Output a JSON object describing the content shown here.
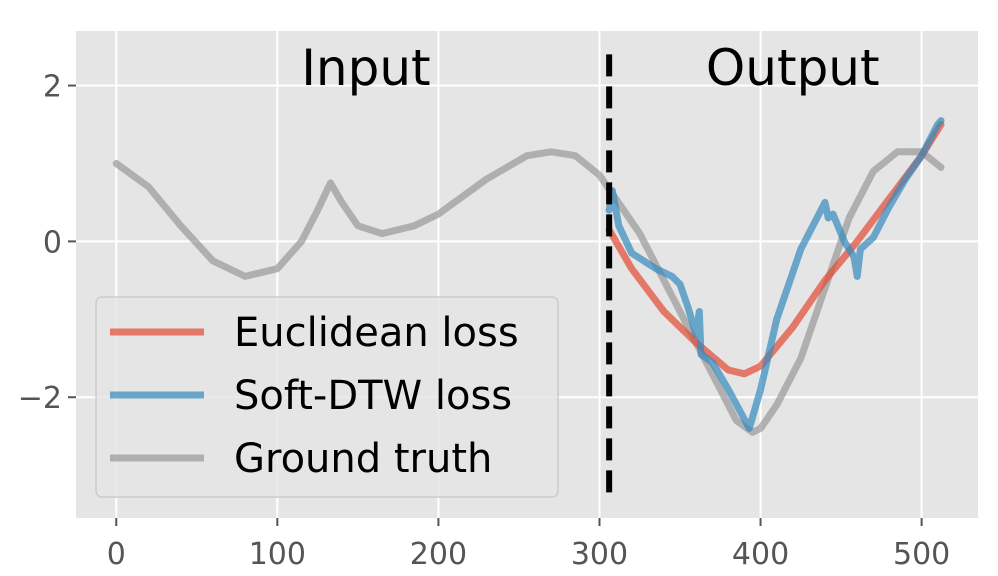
{
  "chart_data": {
    "type": "line",
    "title": "",
    "xlabel": "",
    "ylabel": "",
    "xlim": [
      -25,
      535
    ],
    "ylim": [
      -3.55,
      2.7
    ],
    "xticks": [
      0,
      100,
      200,
      300,
      400,
      500
    ],
    "yticks": [
      2,
      0,
      -2
    ],
    "ytick_labels": [
      "2",
      "0",
      "−2"
    ],
    "grid": true,
    "background": "#e5e5e5",
    "section_labels": [
      {
        "text": "Input",
        "x": 155,
        "y": 2.2
      },
      {
        "text": "Output",
        "x": 420,
        "y": 2.2
      }
    ],
    "boundary": {
      "x": 306,
      "y_from": -3.3,
      "y_to": 2.4,
      "color": "#000000",
      "style": "dashed"
    },
    "legend": {
      "position": "lower-left"
    },
    "series": [
      {
        "name": "Ground truth",
        "color": "#999999",
        "x": [
          0,
          20,
          40,
          60,
          80,
          100,
          115,
          125,
          133,
          140,
          150,
          165,
          185,
          200,
          230,
          255,
          270,
          285,
          300,
          310,
          325,
          340,
          360,
          375,
          385,
          395,
          400,
          410,
          425,
          440,
          455,
          470,
          485,
          500,
          512
        ],
        "y": [
          1.0,
          0.7,
          0.2,
          -0.25,
          -0.45,
          -0.35,
          0.0,
          0.4,
          0.75,
          0.5,
          0.2,
          0.1,
          0.2,
          0.35,
          0.8,
          1.1,
          1.15,
          1.1,
          0.85,
          0.55,
          0.1,
          -0.5,
          -1.3,
          -1.9,
          -2.3,
          -2.45,
          -2.4,
          -2.1,
          -1.5,
          -0.6,
          0.3,
          0.9,
          1.15,
          1.15,
          0.95
        ]
      },
      {
        "name": "Euclidean loss",
        "color": "#e24a33",
        "x": [
          306,
          320,
          340,
          360,
          380,
          390,
          400,
          420,
          440,
          460,
          480,
          500,
          512
        ],
        "y": [
          0.15,
          -0.35,
          -0.9,
          -1.3,
          -1.65,
          -1.7,
          -1.6,
          -1.1,
          -0.5,
          0.0,
          0.55,
          1.1,
          1.5
        ]
      },
      {
        "name": "Soft-DTW loss",
        "color": "#348abd",
        "x": [
          306,
          308,
          312,
          320,
          335,
          345,
          350,
          355,
          360,
          362,
          363,
          370,
          380,
          393,
          400,
          410,
          425,
          440,
          442,
          445,
          452,
          458,
          460,
          462,
          470,
          480,
          490,
          500,
          510,
          512
        ],
        "y": [
          0.4,
          0.65,
          0.2,
          -0.15,
          -0.35,
          -0.45,
          -0.55,
          -0.85,
          -1.2,
          -0.9,
          -1.45,
          -1.55,
          -1.9,
          -2.4,
          -1.9,
          -1.0,
          -0.1,
          0.5,
          0.3,
          0.35,
          0.0,
          -0.2,
          -0.45,
          -0.1,
          0.05,
          0.45,
          0.8,
          1.1,
          1.5,
          1.55
        ]
      }
    ],
    "legend_order": [
      "Euclidean loss",
      "Soft-DTW loss",
      "Ground truth"
    ]
  }
}
